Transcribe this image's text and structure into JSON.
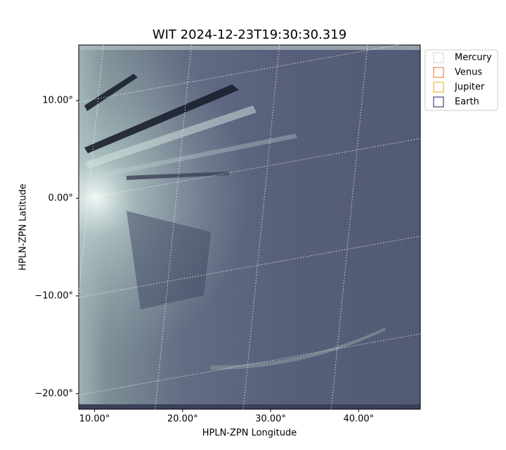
{
  "chart_data": {
    "type": "image",
    "title": "WIT 2024-12-23T19:30:30.319",
    "xlabel": "HPLN-ZPN Longitude",
    "ylabel": "HPLN-ZPN Latitude",
    "xlim": [
      8.2,
      47.0
    ],
    "ylim": [
      -21.6,
      15.7
    ],
    "xticks": [
      {
        "value": 10,
        "label": "10.00°"
      },
      {
        "value": 20,
        "label": "20.00°"
      },
      {
        "value": 30,
        "label": "30.00°"
      },
      {
        "value": 40,
        "label": "40.00°"
      }
    ],
    "yticks": [
      {
        "value": -20,
        "label": "−20.00°"
      },
      {
        "value": -10,
        "label": "−10.00°"
      },
      {
        "value": 0,
        "label": "0.00°"
      },
      {
        "value": 10,
        "label": "10.00°"
      }
    ],
    "grid": true,
    "legend": "upper right",
    "series": [
      {
        "name": "Mercury",
        "color": "#d6d6d6"
      },
      {
        "name": "Venus",
        "color": "#d9722b"
      },
      {
        "name": "Jupiter",
        "color": "#e3a81c"
      },
      {
        "name": "Earth",
        "color": "#1b1b6b"
      }
    ]
  }
}
